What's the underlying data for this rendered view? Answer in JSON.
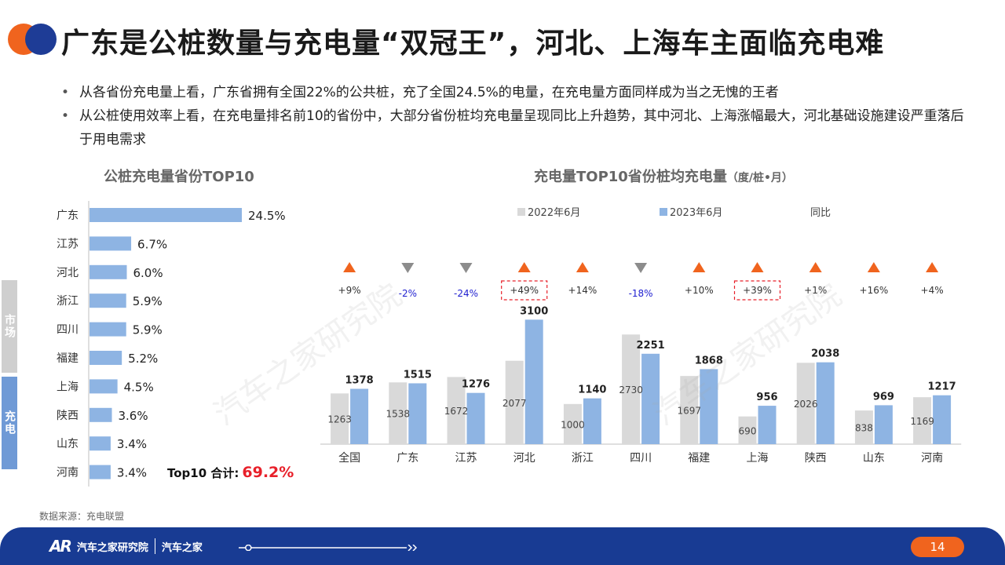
{
  "title": "广东是公桩数量与充电量“双冠王”，河北、上海车主面临充电难",
  "bullets": [
    "从各省份充电量上看，广东省拥有全国22%的公共桩，充了全国24.5%的电量，在充电量方面同样成为当之无愧的王者",
    "从公桩使用效率上看，在充电量排名前10的省份中，大部分省份桩均充电量呈现同比上升趋势，其中河北、上海涨幅最大，河北基础设施建设严重落后于用电需求"
  ],
  "left_chart_title": "公桩充电量省份TOP10",
  "right_chart_title": "充电量TOP10省份桩均充电量",
  "right_chart_unit": "（度/桩•月）",
  "side_tabs": {
    "market": "市场",
    "charge": "充电"
  },
  "total": {
    "label": "Top10 合计:",
    "value": "69.2%"
  },
  "source": "数据来源：充电联盟",
  "footer": {
    "logo_mark": "AR",
    "org_name": "汽车之家研究院",
    "brand_name": "汽车之家",
    "page_number": "14",
    "progress": 0.05
  },
  "watermark": "汽车之家研究院",
  "colors": {
    "orange": "#f0641e",
    "navy": "#183b93",
    "bar_blue": "#8eb4e3",
    "bar_grey": "#d9d9d9",
    "red": "#e8202a",
    "neg_blue": "#1f1fd0"
  },
  "chart_data": [
    {
      "type": "bar",
      "orientation": "horizontal",
      "title": "公桩充电量省份TOP10",
      "categories": [
        "广东",
        "江苏",
        "河北",
        "浙江",
        "四川",
        "福建",
        "上海",
        "陕西",
        "山东",
        "河南"
      ],
      "values": [
        24.5,
        6.7,
        6.0,
        5.9,
        5.9,
        5.2,
        4.5,
        3.6,
        3.4,
        3.4
      ],
      "labels": [
        "24.5%",
        "6.7%",
        "6.0%",
        "5.9%",
        "5.9%",
        "5.2%",
        "4.5%",
        "3.6%",
        "3.4%",
        "3.4%"
      ],
      "xlim": [
        0,
        24.5
      ]
    },
    {
      "type": "bar",
      "title": "充电量TOP10省份桩均充电量",
      "unit": "（度/桩•月）",
      "categories": [
        "全国",
        "广东",
        "江苏",
        "河北",
        "浙江",
        "四川",
        "福建",
        "上海",
        "陕西",
        "山东",
        "河南"
      ],
      "series": [
        {
          "name": "2022年6月",
          "color": "#d9d9d9",
          "values": [
            1263,
            1538,
            1672,
            2077,
            1000,
            2730,
            1697,
            690,
            2026,
            838,
            1169
          ]
        },
        {
          "name": "2023年6月",
          "color": "#8eb4e3",
          "values": [
            1378,
            1515,
            1276,
            3100,
            1140,
            2251,
            1868,
            956,
            2038,
            969,
            1217
          ]
        }
      ],
      "yoy_label": "同比",
      "yoy": [
        "+9%",
        "-2%",
        "-24%",
        "+49%",
        "+14%",
        "-18%",
        "+10%",
        "+39%",
        "+1%",
        "+16%",
        "+4%"
      ],
      "yoy_direction": [
        "up",
        "down",
        "down",
        "up",
        "up",
        "down",
        "up",
        "up",
        "up",
        "up",
        "up"
      ],
      "yoy_highlight": [
        false,
        false,
        false,
        true,
        false,
        false,
        false,
        true,
        false,
        false,
        false
      ],
      "ylim": [
        0,
        3300
      ]
    }
  ]
}
